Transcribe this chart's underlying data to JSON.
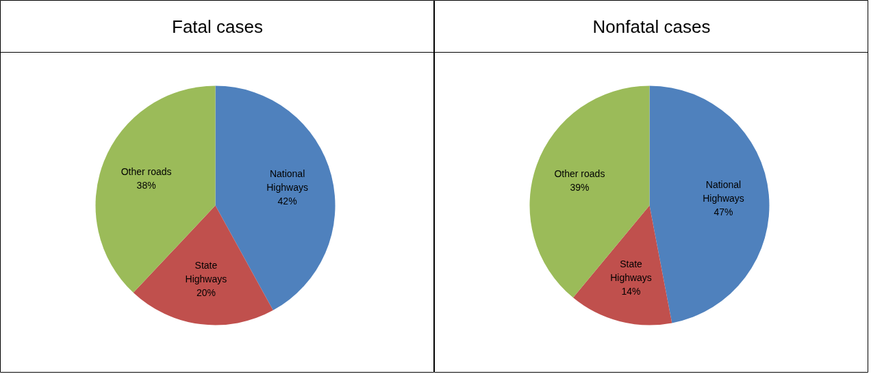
{
  "chart_data": [
    {
      "type": "pie",
      "title": "Fatal cases",
      "categories": [
        "National Highways",
        "State Highways",
        "Other roads"
      ],
      "values": [
        42,
        20,
        38
      ],
      "value_labels": [
        "42%",
        "20%",
        "38%"
      ],
      "colors": [
        "#4f81bd",
        "#c0504d",
        "#9bbb59"
      ],
      "legend": false
    },
    {
      "type": "pie",
      "title": "Nonfatal cases",
      "categories": [
        "National Highways",
        "State Highways",
        "Other roads"
      ],
      "values": [
        47,
        14,
        39
      ],
      "value_labels": [
        "47%",
        "14%",
        "39%"
      ],
      "colors": [
        "#4f81bd",
        "#c0504d",
        "#9bbb59"
      ],
      "legend": false
    }
  ]
}
